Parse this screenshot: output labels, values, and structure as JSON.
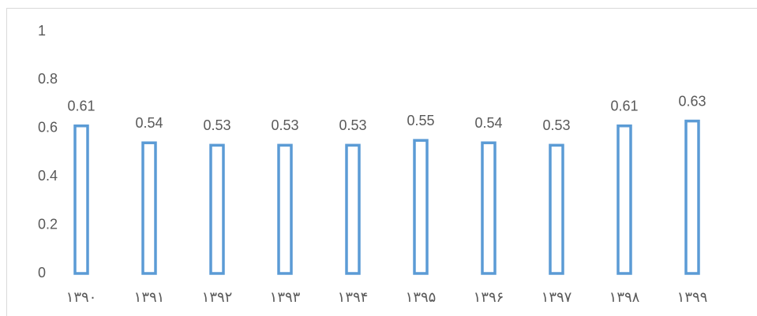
{
  "chart_data": {
    "type": "bar",
    "categories": [
      "۱۳۹۰",
      "۱۳۹۱",
      "۱۳۹۲",
      "۱۳۹۳",
      "۱۳۹۴",
      "۱۳۹۵",
      "۱۳۹۶",
      "۱۳۹۷",
      "۱۳۹۸",
      "۱۳۹۹"
    ],
    "values": [
      0.61,
      0.54,
      0.53,
      0.53,
      0.53,
      0.55,
      0.54,
      0.53,
      0.61,
      0.63
    ],
    "color": "#5b9bd5",
    "ylim": [
      0,
      1
    ],
    "yticks": [
      0,
      0.2,
      0.4,
      0.6,
      0.8,
      1
    ],
    "grid": false
  }
}
